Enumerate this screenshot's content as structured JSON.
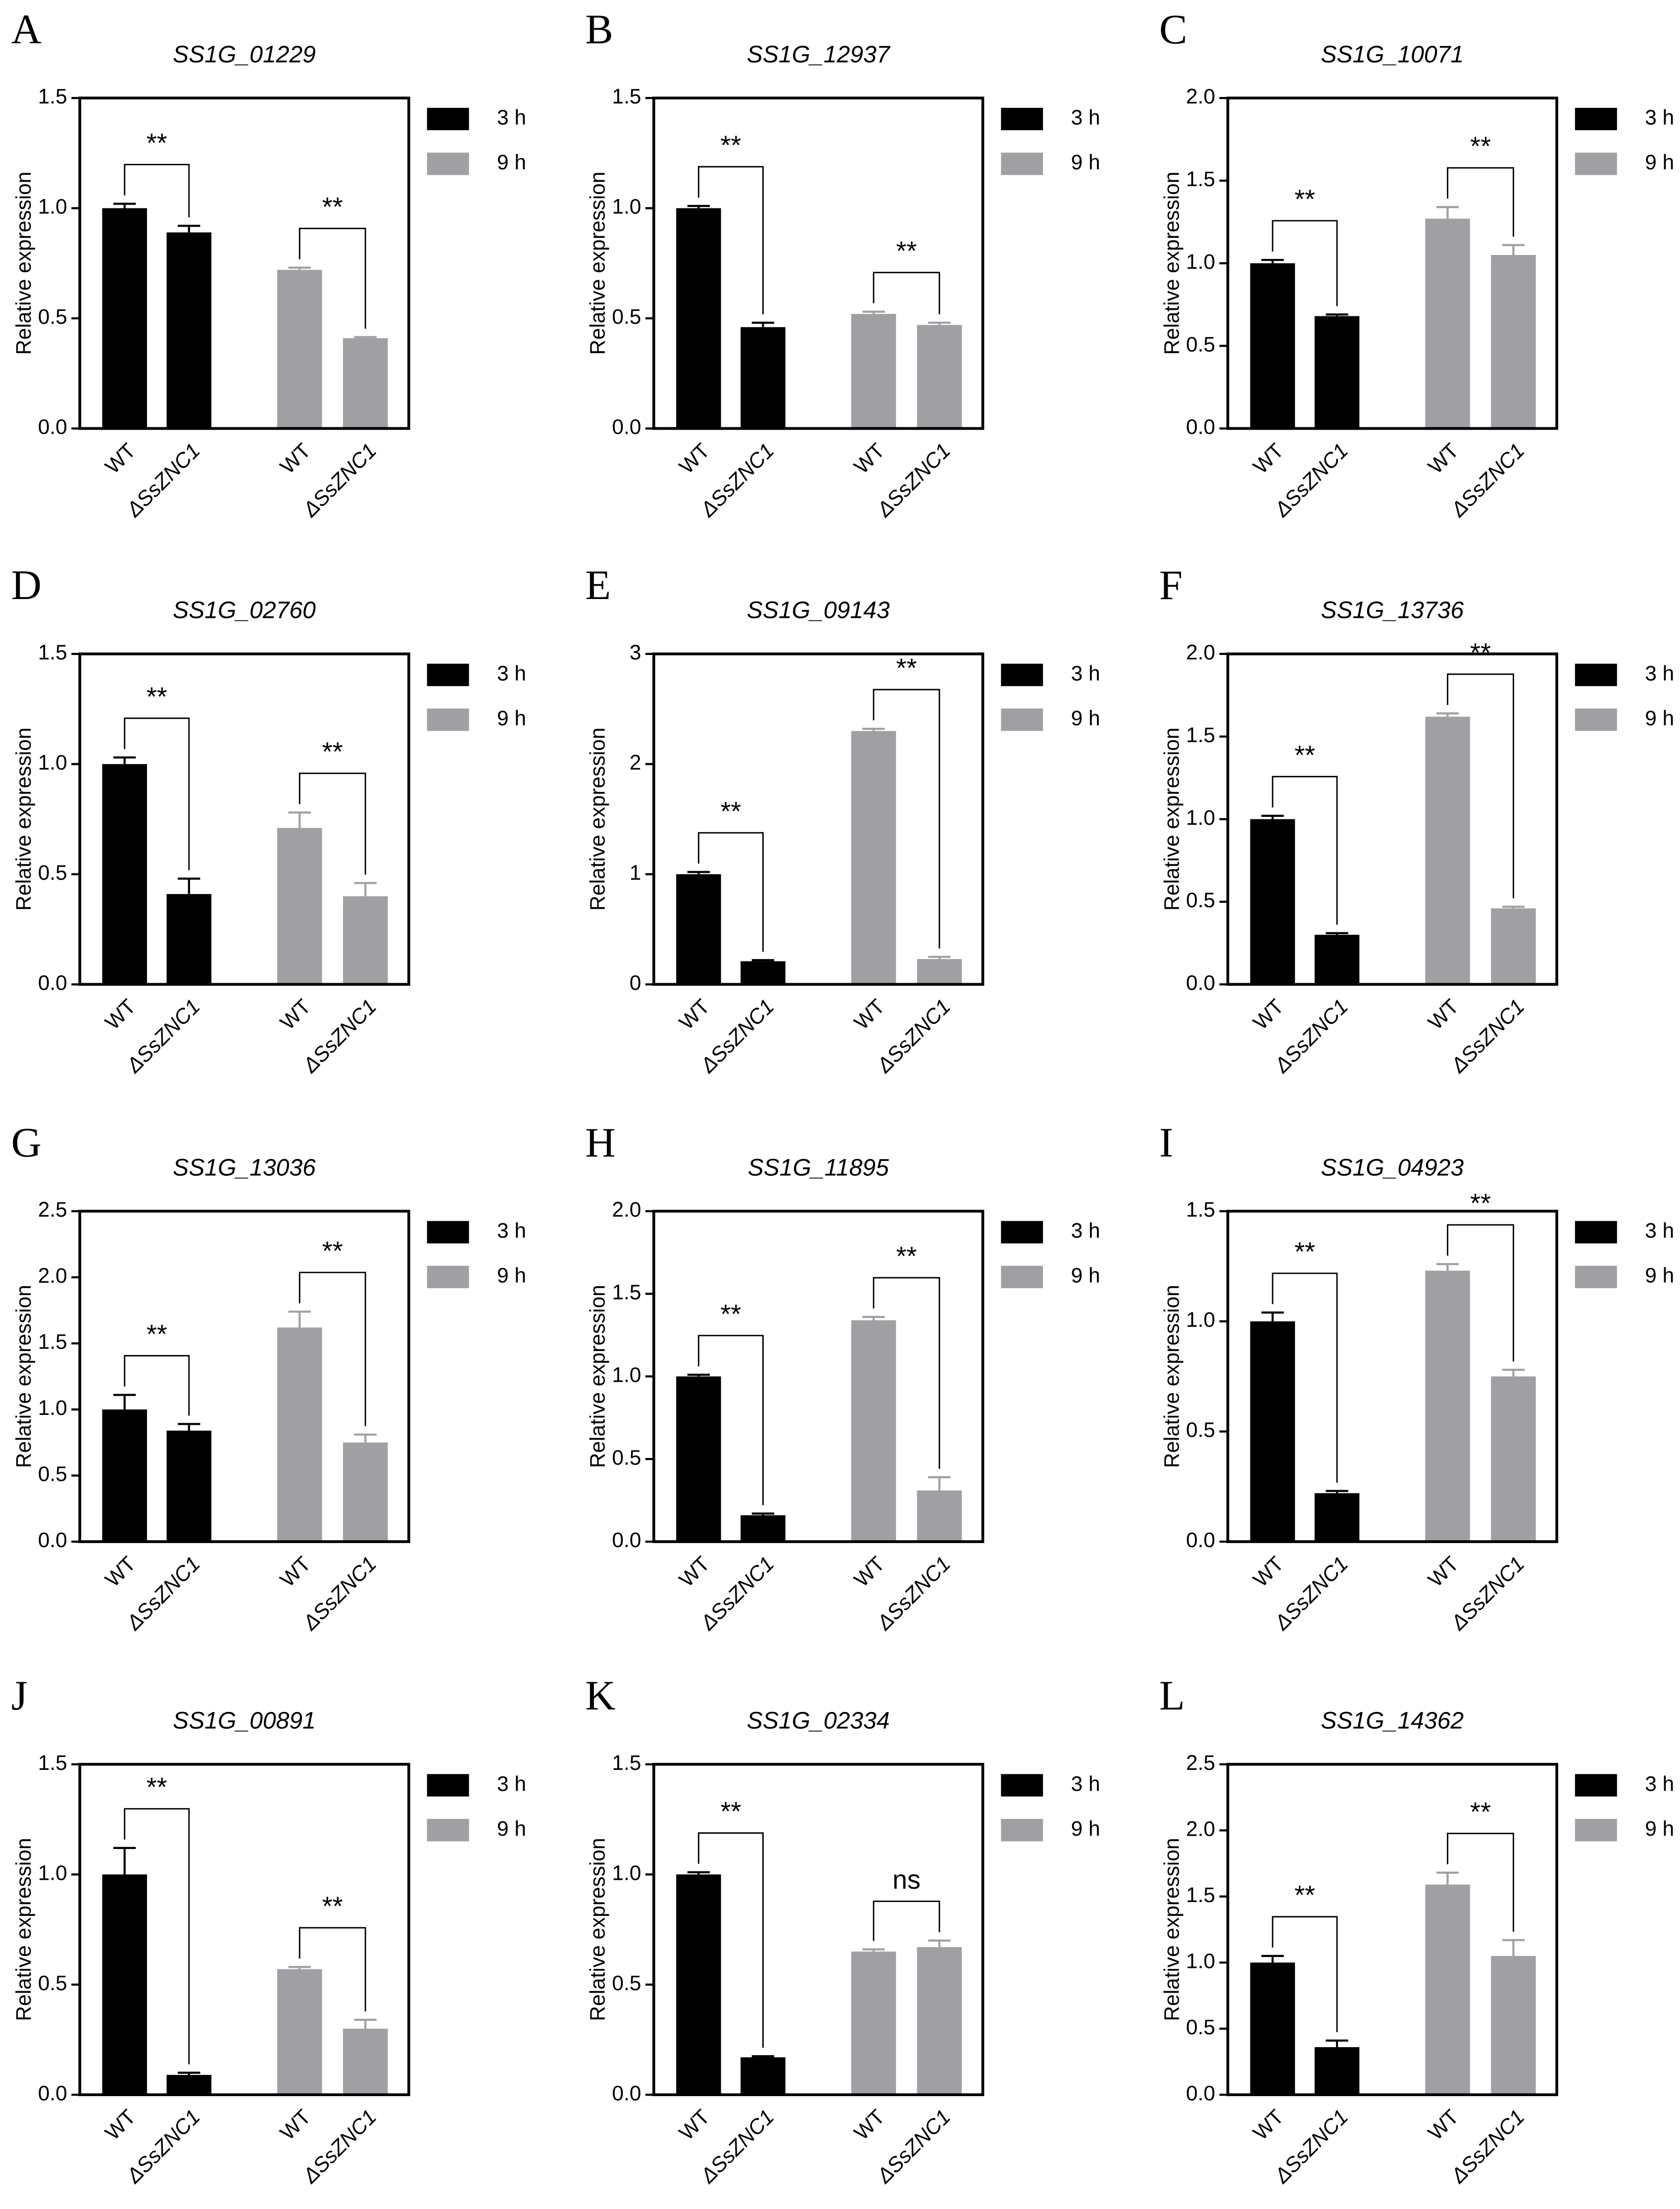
{
  "chart_data": [
    {
      "type": "bar",
      "panel": "A",
      "title": "SS1G_01229",
      "ylabel": "Relative expression",
      "categories": [
        "WT",
        "ΔSsZNC1"
      ],
      "series": [
        {
          "name": "3 h",
          "color": "#000000",
          "values": [
            1.0,
            0.89
          ],
          "errors": [
            0.02,
            0.03
          ],
          "significance": "**"
        },
        {
          "name": "9 h",
          "color": "#a0a0a4",
          "values": [
            0.72,
            0.41
          ],
          "errors": [
            0.01,
            0.005
          ],
          "significance": "**"
        }
      ],
      "ylim": [
        0,
        1.5
      ],
      "yticks": [
        {
          "value": 0,
          "label": "0.0"
        },
        0.5,
        {
          "value": 1,
          "label": "1.0"
        },
        1.5
      ]
    },
    {
      "type": "bar",
      "panel": "B",
      "title": "SS1G_12937",
      "ylabel": "Relative expression",
      "categories": [
        "WT",
        "ΔSsZNC1"
      ],
      "series": [
        {
          "name": "3 h",
          "color": "#000000",
          "values": [
            1.0,
            0.46
          ],
          "errors": [
            0.01,
            0.02
          ],
          "significance": "**"
        },
        {
          "name": "9 h",
          "color": "#a0a0a4",
          "values": [
            0.52,
            0.47
          ],
          "errors": [
            0.01,
            0.01
          ],
          "significance": "**"
        }
      ],
      "ylim": [
        0,
        1.5
      ],
      "yticks": [
        {
          "value": 0,
          "label": "0.0"
        },
        0.5,
        {
          "value": 1,
          "label": "1.0"
        },
        1.5
      ]
    },
    {
      "type": "bar",
      "panel": "C",
      "title": "SS1G_10071",
      "ylabel": "Relative expression",
      "categories": [
        "WT",
        "ΔSsZNC1"
      ],
      "series": [
        {
          "name": "3 h",
          "color": "#000000",
          "values": [
            1.0,
            0.68
          ],
          "errors": [
            0.02,
            0.01
          ],
          "significance": "**"
        },
        {
          "name": "9 h",
          "color": "#a0a0a4",
          "values": [
            1.27,
            1.05
          ],
          "errors": [
            0.07,
            0.06
          ],
          "significance": "**"
        }
      ],
      "ylim": [
        0,
        2
      ],
      "yticks": [
        {
          "value": 0,
          "label": "0.0"
        },
        0.5,
        {
          "value": 1,
          "label": "1.0"
        },
        1.5,
        {
          "value": 2,
          "label": "2.0"
        }
      ]
    },
    {
      "type": "bar",
      "panel": "D",
      "title": "SS1G_02760",
      "ylabel": "Relative expression",
      "categories": [
        "WT",
        "ΔSsZNC1"
      ],
      "series": [
        {
          "name": "3 h",
          "color": "#000000",
          "values": [
            1.0,
            0.41
          ],
          "errors": [
            0.03,
            0.07
          ],
          "significance": "**"
        },
        {
          "name": "9 h",
          "color": "#a0a0a4",
          "values": [
            0.71,
            0.4
          ],
          "errors": [
            0.07,
            0.06
          ],
          "significance": "**"
        }
      ],
      "ylim": [
        0,
        1.5
      ],
      "yticks": [
        {
          "value": 0,
          "label": "0.0"
        },
        0.5,
        {
          "value": 1,
          "label": "1.0"
        },
        1.5
      ]
    },
    {
      "type": "bar",
      "panel": "E",
      "title": "SS1G_09143",
      "ylabel": "Relative expression",
      "categories": [
        "WT",
        "ΔSsZNC1"
      ],
      "series": [
        {
          "name": "3 h",
          "color": "#000000",
          "values": [
            1.0,
            0.21
          ],
          "errors": [
            0.02,
            0.01
          ],
          "significance": "**"
        },
        {
          "name": "9 h",
          "color": "#a0a0a4",
          "values": [
            2.3,
            0.23
          ],
          "errors": [
            0.02,
            0.02
          ],
          "significance": "**"
        }
      ],
      "ylim": [
        0,
        3
      ],
      "yticks": [
        0,
        1,
        2,
        3
      ]
    },
    {
      "type": "bar",
      "panel": "F",
      "title": "SS1G_13736",
      "ylabel": "Relative expression",
      "categories": [
        "WT",
        "ΔSsZNC1"
      ],
      "series": [
        {
          "name": "3 h",
          "color": "#000000",
          "values": [
            1.0,
            0.3
          ],
          "errors": [
            0.02,
            0.01
          ],
          "significance": "**"
        },
        {
          "name": "9 h",
          "color": "#a0a0a4",
          "values": [
            1.62,
            0.46
          ],
          "errors": [
            0.02,
            0.01
          ],
          "significance": "**"
        }
      ],
      "ylim": [
        0,
        2
      ],
      "yticks": [
        {
          "value": 0,
          "label": "0.0"
        },
        0.5,
        {
          "value": 1,
          "label": "1.0"
        },
        1.5,
        {
          "value": 2,
          "label": "2.0"
        }
      ]
    },
    {
      "type": "bar",
      "panel": "G",
      "title": "SS1G_13036",
      "ylabel": "Relative expression",
      "categories": [
        "WT",
        "ΔSsZNC1"
      ],
      "series": [
        {
          "name": "3 h",
          "color": "#000000",
          "values": [
            1.0,
            0.84
          ],
          "errors": [
            0.11,
            0.05
          ],
          "significance": "**"
        },
        {
          "name": "9 h",
          "color": "#a0a0a4",
          "values": [
            1.62,
            0.75
          ],
          "errors": [
            0.12,
            0.06
          ],
          "significance": "**"
        }
      ],
      "ylim": [
        0,
        2.5
      ],
      "yticks": [
        {
          "value": 0,
          "label": "0.0"
        },
        0.5,
        {
          "value": 1,
          "label": "1.0"
        },
        1.5,
        {
          "value": 2,
          "label": "2.0"
        },
        2.5
      ]
    },
    {
      "type": "bar",
      "panel": "H",
      "title": "SS1G_11895",
      "ylabel": "Relative expression",
      "categories": [
        "WT",
        "ΔSsZNC1"
      ],
      "series": [
        {
          "name": "3 h",
          "color": "#000000",
          "values": [
            1.0,
            0.16
          ],
          "errors": [
            0.01,
            0.01
          ],
          "significance": "**"
        },
        {
          "name": "9 h",
          "color": "#a0a0a4",
          "values": [
            1.34,
            0.31
          ],
          "errors": [
            0.02,
            0.08
          ],
          "significance": "**"
        }
      ],
      "ylim": [
        0,
        2
      ],
      "yticks": [
        {
          "value": 0,
          "label": "0.0"
        },
        0.5,
        {
          "value": 1,
          "label": "1.0"
        },
        1.5,
        {
          "value": 2,
          "label": "2.0"
        }
      ]
    },
    {
      "type": "bar",
      "panel": "I",
      "title": "SS1G_04923",
      "ylabel": "Relative expression",
      "categories": [
        "WT",
        "ΔSsZNC1"
      ],
      "series": [
        {
          "name": "3 h",
          "color": "#000000",
          "values": [
            1.0,
            0.22
          ],
          "errors": [
            0.04,
            0.01
          ],
          "significance": "**"
        },
        {
          "name": "9 h",
          "color": "#a0a0a4",
          "values": [
            1.23,
            0.75
          ],
          "errors": [
            0.03,
            0.03
          ],
          "significance": "**"
        }
      ],
      "ylim": [
        0,
        1.5
      ],
      "yticks": [
        {
          "value": 0,
          "label": "0.0"
        },
        0.5,
        {
          "value": 1,
          "label": "1.0"
        },
        1.5
      ]
    },
    {
      "type": "bar",
      "panel": "J",
      "title": "SS1G_00891",
      "ylabel": "Relative expression",
      "categories": [
        "WT",
        "ΔSsZNC1"
      ],
      "series": [
        {
          "name": "3 h",
          "color": "#000000",
          "values": [
            1.0,
            0.09
          ],
          "errors": [
            0.12,
            0.01
          ],
          "significance": "**"
        },
        {
          "name": "9 h",
          "color": "#a0a0a4",
          "values": [
            0.57,
            0.3
          ],
          "errors": [
            0.01,
            0.04
          ],
          "significance": "**"
        }
      ],
      "ylim": [
        0,
        1.5
      ],
      "yticks": [
        {
          "value": 0,
          "label": "0.0"
        },
        0.5,
        {
          "value": 1,
          "label": "1.0"
        },
        1.5
      ]
    },
    {
      "type": "bar",
      "panel": "K",
      "title": "SS1G_02334",
      "ylabel": "Relative expression",
      "categories": [
        "WT",
        "ΔSsZNC1"
      ],
      "series": [
        {
          "name": "3 h",
          "color": "#000000",
          "values": [
            1.0,
            0.17
          ],
          "errors": [
            0.01,
            0.005
          ],
          "significance": "**"
        },
        {
          "name": "9 h",
          "color": "#a0a0a4",
          "values": [
            0.65,
            0.67
          ],
          "errors": [
            0.01,
            0.03
          ],
          "significance": "ns"
        }
      ],
      "ylim": [
        0,
        1.5
      ],
      "yticks": [
        {
          "value": 0,
          "label": "0.0"
        },
        0.5,
        {
          "value": 1,
          "label": "1.0"
        },
        1.5
      ]
    },
    {
      "type": "bar",
      "panel": "L",
      "title": "SS1G_14362",
      "ylabel": "Relative expression",
      "categories": [
        "WT",
        "ΔSsZNC1"
      ],
      "series": [
        {
          "name": "3 h",
          "color": "#000000",
          "values": [
            1.0,
            0.36
          ],
          "errors": [
            0.05,
            0.05
          ],
          "significance": "**"
        },
        {
          "name": "9 h",
          "color": "#a0a0a4",
          "values": [
            1.59,
            1.05
          ],
          "errors": [
            0.09,
            0.12
          ],
          "significance": "**"
        }
      ],
      "ylim": [
        0,
        2.5
      ],
      "yticks": [
        {
          "value": 0,
          "label": "0.0"
        },
        0.5,
        {
          "value": 1,
          "label": "1.0"
        },
        1.5,
        {
          "value": 2,
          "label": "2.0"
        },
        2.5
      ]
    }
  ]
}
